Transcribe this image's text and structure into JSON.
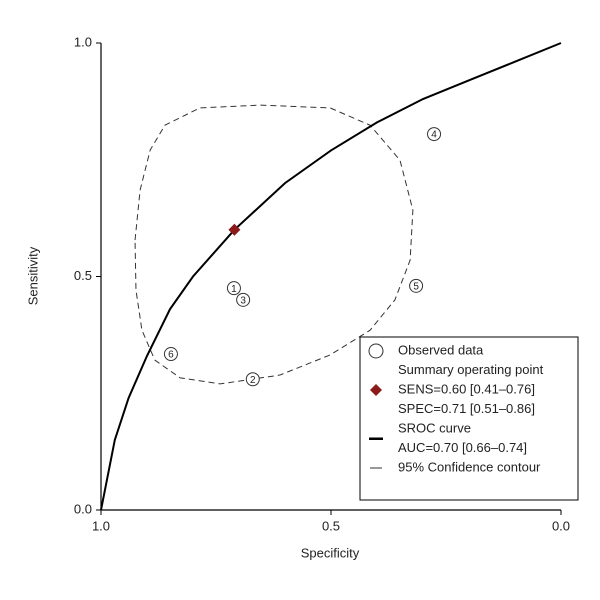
{
  "chart_data": {
    "type": "sroc",
    "xlabel": "Specificity",
    "ylabel": "Sensitivity",
    "xlim": [
      1,
      0
    ],
    "ylim": [
      0,
      1
    ],
    "xticks": [
      {
        "value": 1,
        "label": "1.0"
      },
      {
        "value": 0.5,
        "label": "0.5"
      },
      {
        "value": 0,
        "label": "0.0"
      }
    ],
    "yticks": [
      {
        "value": 0,
        "label": "0.0"
      },
      {
        "value": 0.5,
        "label": "0.5"
      },
      {
        "value": 1,
        "label": "1.0"
      }
    ],
    "series": [
      {
        "name": "Observed data",
        "type": "scatter",
        "color": "#333333",
        "x": [
          0.711,
          0.67,
          0.691,
          0.276,
          0.315,
          0.848
        ],
        "values": [
          0.475,
          0.28,
          0.45,
          0.805,
          0.48,
          0.334
        ],
        "point_labels": [
          "1",
          "2",
          "3",
          "4",
          "5",
          "6"
        ]
      },
      {
        "name": "Summary operating point",
        "type": "point",
        "color": "#8b1a1a",
        "x": [
          0.71
        ],
        "values": [
          0.6
        ],
        "annotations": [
          "SENS=0.60 [0.41–0.76]",
          "SPEC=0.71 [0.51–0.86]"
        ]
      },
      {
        "name": "SROC curve",
        "type": "line",
        "color": "#000000",
        "x": [
          1.0,
          0.99,
          0.97,
          0.94,
          0.9,
          0.85,
          0.8,
          0.71,
          0.6,
          0.5,
          0.4,
          0.3,
          0.2,
          0.1,
          0.0
        ],
        "values": [
          0,
          0.05,
          0.15,
          0.24,
          0.33,
          0.43,
          0.5,
          0.6,
          0.7,
          0.77,
          0.83,
          0.88,
          0.92,
          0.96,
          1.0
        ],
        "annotations": [
          "AUC=0.70 [0.66–0.74]"
        ]
      },
      {
        "name": "95% Confidence contour",
        "type": "contour",
        "color": "#333333",
        "x": [
          0.926,
          0.915,
          0.893,
          0.861,
          0.785,
          0.654,
          0.502,
          0.415,
          0.35,
          0.322,
          0.328,
          0.361,
          0.415,
          0.502,
          0.611,
          0.741,
          0.828,
          0.883,
          0.911,
          0.924
        ],
        "values": [
          0.578,
          0.685,
          0.771,
          0.824,
          0.861,
          0.867,
          0.861,
          0.824,
          0.749,
          0.642,
          0.535,
          0.45,
          0.385,
          0.332,
          0.289,
          0.27,
          0.283,
          0.321,
          0.385,
          0.471
        ]
      }
    ]
  }
}
